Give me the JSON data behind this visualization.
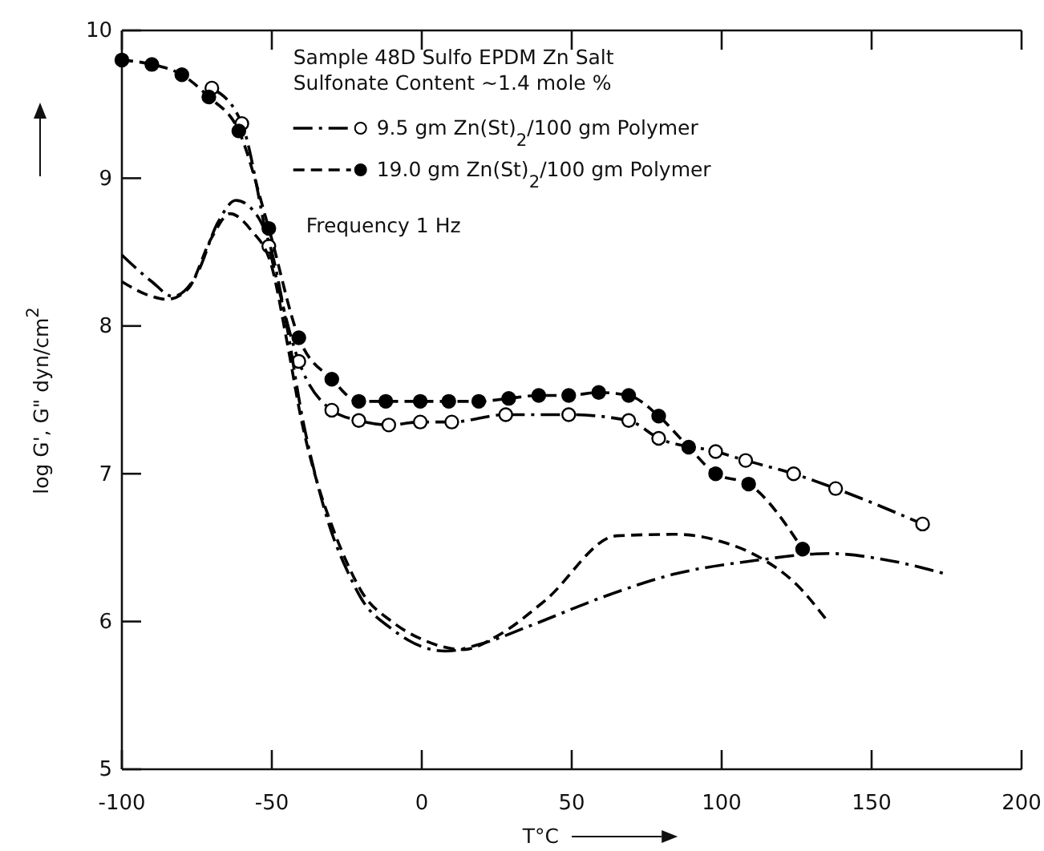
{
  "chart_data": {
    "type": "line",
    "xlabel": "T°C",
    "ylabel": "log G', G\" dyn/cm$^{2}$",
    "xlim": [
      -100,
      200
    ],
    "xticks": [
      -100,
      -50,
      0,
      50,
      100,
      150,
      200
    ],
    "ylim": [
      5,
      10
    ],
    "yticks": [
      5,
      6,
      7,
      8,
      9,
      10
    ],
    "grid": false,
    "legend": "top right",
    "annotations": [
      "Sample 48D Sulfo EPDM Zn Salt",
      "Sulfonate Content ~1.4 mole %",
      "Frequency 1 Hz"
    ],
    "series": [
      {
        "name": "9.5 gm Zn(St)$_{2}$/100 gm Polymer",
        "color": "#000000",
        "line_style": "dashdot",
        "marker": "circle",
        "x": [
          -70,
          -60,
          -51,
          -41,
          -30,
          -21,
          -11,
          -0.5,
          10,
          28,
          49,
          69,
          79,
          98,
          108,
          124,
          138,
          167
        ],
        "values": [
          9.61,
          9.37,
          8.54,
          7.76,
          7.43,
          7.36,
          7.33,
          7.35,
          7.35,
          7.4,
          7.4,
          7.36,
          7.24,
          7.15,
          7.09,
          7.0,
          6.9,
          6.66
        ]
      },
      {
        "name": "19.0 gm Zn(St)$_{2}$/100 gm Polymer",
        "color": "#000000",
        "line_style": "dashed",
        "marker": "circle",
        "x": [
          -100,
          -90,
          -80,
          -71,
          -61,
          -51,
          -41,
          -30,
          -21,
          -12,
          -0.5,
          9,
          19,
          29,
          39,
          49,
          59,
          69,
          79,
          89,
          98,
          109,
          127
        ],
        "values": [
          9.8,
          9.77,
          9.7,
          9.55,
          9.32,
          8.66,
          7.92,
          7.64,
          7.49,
          7.49,
          7.49,
          7.49,
          7.49,
          7.51,
          7.53,
          7.53,
          7.55,
          7.53,
          7.39,
          7.18,
          7.0,
          6.93,
          6.49
        ]
      },
      {
        "color": "#000000",
        "line_style": "dashdot",
        "marker": "none",
        "x": [
          -100,
          -90,
          -83,
          -75,
          -68,
          -62,
          -55,
          -50,
          -45,
          -40,
          -35,
          -30,
          -25,
          -20,
          -10,
          0,
          8,
          20,
          36,
          61,
          84,
          110,
          136,
          154,
          175
        ],
        "values": [
          8.48,
          8.3,
          8.2,
          8.35,
          8.7,
          8.85,
          8.75,
          8.5,
          8.0,
          7.4,
          6.95,
          6.6,
          6.35,
          6.15,
          5.95,
          5.83,
          5.8,
          5.85,
          5.97,
          6.17,
          6.32,
          6.41,
          6.46,
          6.42,
          6.32
        ]
      },
      {
        "color": "#000000",
        "line_style": "dashed",
        "marker": "none",
        "x": [
          -100,
          -90,
          -85,
          -78,
          -70,
          -64,
          -57,
          -50,
          -45,
          -40,
          -35,
          -30,
          -25,
          -20,
          -10,
          0,
          14,
          25,
          41,
          65,
          85,
          100,
          113,
          125,
          135
        ],
        "values": [
          8.3,
          8.2,
          8.18,
          8.25,
          8.6,
          8.76,
          8.65,
          8.4,
          7.9,
          7.35,
          6.95,
          6.65,
          6.4,
          6.2,
          6.0,
          5.88,
          5.81,
          5.9,
          6.14,
          6.58,
          6.59,
          6.54,
          6.43,
          6.25,
          6.01
        ]
      }
    ]
  }
}
